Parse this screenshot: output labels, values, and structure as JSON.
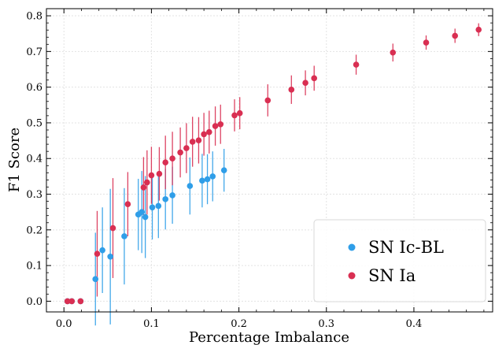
{
  "chart_data": {
    "type": "scatter",
    "xlabel": "Percentage Imbalance",
    "ylabel": "F1 Score",
    "xlim": [
      -0.02,
      0.49
    ],
    "ylim": [
      -0.03,
      0.82
    ],
    "xticks": [
      0.0,
      0.1,
      0.2,
      0.3,
      0.4
    ],
    "xtick_labels": [
      "0.0",
      "0.1",
      "0.2",
      "0.3",
      "0.4"
    ],
    "yticks": [
      0.0,
      0.1,
      0.2,
      0.3,
      0.4,
      0.5,
      0.6,
      0.7,
      0.8
    ],
    "ytick_labels": [
      "0.0",
      "0.1",
      "0.2",
      "0.3",
      "0.4",
      "0.5",
      "0.6",
      "0.7",
      "0.8"
    ],
    "grid": true,
    "legend_position": "bottom-right",
    "series": [
      {
        "name": "SN Ic-BL",
        "color": "#2f9ee8",
        "points": [
          {
            "x": 0.004,
            "y": 0.0,
            "err": 0.0
          },
          {
            "x": 0.009,
            "y": 0.0,
            "err": 0.0
          },
          {
            "x": 0.019,
            "y": 0.0,
            "err": 0.0
          },
          {
            "x": 0.036,
            "y": 0.062,
            "err": 0.13
          },
          {
            "x": 0.044,
            "y": 0.143,
            "err": 0.12
          },
          {
            "x": 0.053,
            "y": 0.125,
            "err": 0.19
          },
          {
            "x": 0.069,
            "y": 0.182,
            "err": 0.135
          },
          {
            "x": 0.085,
            "y": 0.243,
            "err": 0.1
          },
          {
            "x": 0.089,
            "y": 0.25,
            "err": 0.115
          },
          {
            "x": 0.093,
            "y": 0.236,
            "err": 0.115
          },
          {
            "x": 0.101,
            "y": 0.263,
            "err": 0.09
          },
          {
            "x": 0.108,
            "y": 0.267,
            "err": 0.09
          },
          {
            "x": 0.116,
            "y": 0.286,
            "err": 0.085
          },
          {
            "x": 0.124,
            "y": 0.297,
            "err": 0.08
          },
          {
            "x": 0.144,
            "y": 0.323,
            "err": 0.08
          },
          {
            "x": 0.158,
            "y": 0.338,
            "err": 0.075
          },
          {
            "x": 0.164,
            "y": 0.342,
            "err": 0.07
          },
          {
            "x": 0.17,
            "y": 0.35,
            "err": 0.07
          },
          {
            "x": 0.183,
            "y": 0.367,
            "err": 0.06
          }
        ]
      },
      {
        "name": "SN Ia",
        "color": "#d92f52",
        "points": [
          {
            "x": 0.004,
            "y": 0.0,
            "err": 0.0
          },
          {
            "x": 0.009,
            "y": 0.0,
            "err": 0.0
          },
          {
            "x": 0.019,
            "y": 0.0,
            "err": 0.0
          },
          {
            "x": 0.038,
            "y": 0.133,
            "err": 0.12
          },
          {
            "x": 0.056,
            "y": 0.205,
            "err": 0.14
          },
          {
            "x": 0.073,
            "y": 0.272,
            "err": 0.09
          },
          {
            "x": 0.091,
            "y": 0.319,
            "err": 0.085
          },
          {
            "x": 0.095,
            "y": 0.333,
            "err": 0.09
          },
          {
            "x": 0.1,
            "y": 0.353,
            "err": 0.08
          },
          {
            "x": 0.109,
            "y": 0.357,
            "err": 0.075
          },
          {
            "x": 0.116,
            "y": 0.389,
            "err": 0.075
          },
          {
            "x": 0.124,
            "y": 0.4,
            "err": 0.075
          },
          {
            "x": 0.133,
            "y": 0.417,
            "err": 0.07
          },
          {
            "x": 0.14,
            "y": 0.429,
            "err": 0.07
          },
          {
            "x": 0.147,
            "y": 0.447,
            "err": 0.07
          },
          {
            "x": 0.154,
            "y": 0.451,
            "err": 0.065
          },
          {
            "x": 0.16,
            "y": 0.468,
            "err": 0.06
          },
          {
            "x": 0.166,
            "y": 0.474,
            "err": 0.06
          },
          {
            "x": 0.173,
            "y": 0.491,
            "err": 0.055
          },
          {
            "x": 0.179,
            "y": 0.496,
            "err": 0.055
          },
          {
            "x": 0.195,
            "y": 0.521,
            "err": 0.045
          },
          {
            "x": 0.201,
            "y": 0.527,
            "err": 0.045
          },
          {
            "x": 0.233,
            "y": 0.563,
            "err": 0.045
          },
          {
            "x": 0.26,
            "y": 0.593,
            "err": 0.04
          },
          {
            "x": 0.276,
            "y": 0.612,
            "err": 0.035
          },
          {
            "x": 0.286,
            "y": 0.625,
            "err": 0.035
          },
          {
            "x": 0.334,
            "y": 0.663,
            "err": 0.028
          },
          {
            "x": 0.376,
            "y": 0.697,
            "err": 0.025
          },
          {
            "x": 0.414,
            "y": 0.725,
            "err": 0.02
          },
          {
            "x": 0.447,
            "y": 0.744,
            "err": 0.02
          },
          {
            "x": 0.474,
            "y": 0.761,
            "err": 0.018
          }
        ]
      }
    ]
  }
}
